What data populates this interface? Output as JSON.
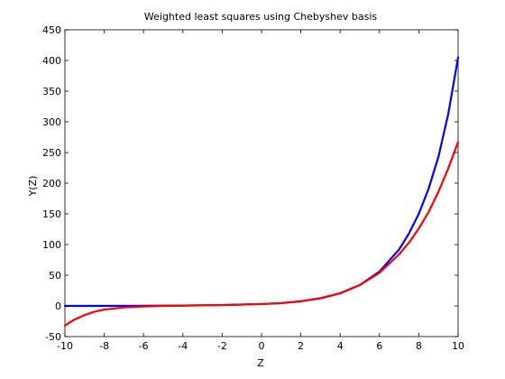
{
  "chart_data": {
    "type": "line",
    "title": "Weighted least squares using Chebyshev basis",
    "xlabel": "Z",
    "ylabel": "Y(Z)",
    "xlim": [
      -10,
      10
    ],
    "ylim": [
      -50,
      450
    ],
    "xticks": [
      -10,
      -8,
      -6,
      -4,
      -2,
      0,
      2,
      4,
      6,
      8,
      10
    ],
    "yticks": [
      -50,
      0,
      50,
      100,
      150,
      200,
      250,
      300,
      350,
      400,
      450
    ],
    "grid": false,
    "series": [
      {
        "color": "#0000ff",
        "x": [
          -10,
          -8,
          -6,
          -4,
          -2,
          0,
          1,
          2,
          3,
          4,
          5,
          6,
          7,
          7.5,
          8,
          8.5,
          9,
          9.5,
          10
        ],
        "y": [
          0,
          0,
          0.2,
          0.6,
          1.4,
          3,
          4.5,
          7.5,
          12.5,
          20.5,
          34,
          56,
          92,
          118,
          150,
          191,
          243,
          313,
          405
        ]
      },
      {
        "color": "#ff0000",
        "x": [
          -10,
          -9.5,
          -9,
          -8.5,
          -8,
          -7,
          -6,
          -5,
          -4,
          -2,
          0,
          1,
          2,
          3,
          4,
          5,
          6,
          7,
          7.5,
          8,
          8.5,
          9,
          9.5,
          10
        ],
        "y": [
          -32,
          -22,
          -15,
          -9.5,
          -6,
          -2.5,
          -1,
          0,
          0.6,
          1.4,
          3,
          4.5,
          7.5,
          12.5,
          20.5,
          34,
          54,
          84,
          103,
          126,
          153,
          186,
          224,
          267
        ]
      }
    ]
  }
}
